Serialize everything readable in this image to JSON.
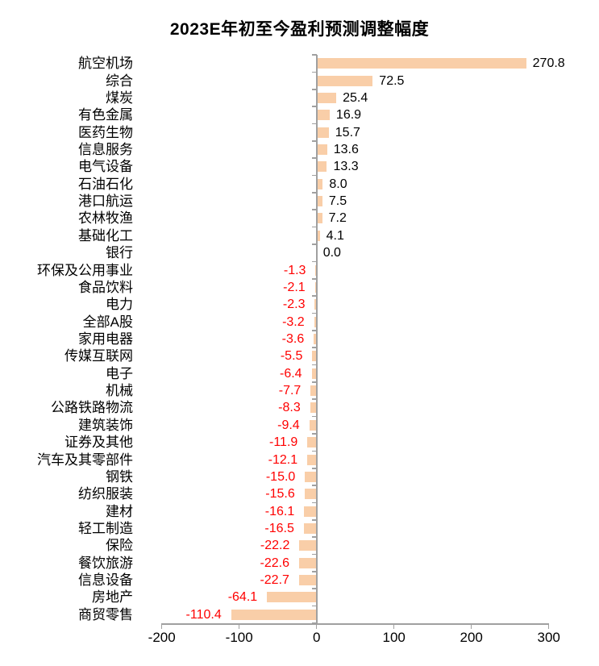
{
  "chart_data": {
    "type": "bar",
    "orientation": "horizontal",
    "title": "2023E年初至今盈利预测调整幅度",
    "categories": [
      "航空机场",
      "综合",
      "煤炭",
      "有色金属",
      "医药生物",
      "信息服务",
      "电气设备",
      "石油石化",
      "港口航运",
      "农林牧渔",
      "基础化工",
      "银行",
      "环保及公用事业",
      "食品饮料",
      "电力",
      "全部A股",
      "家用电器",
      "传媒互联网",
      "电子",
      "机械",
      "公路铁路物流",
      "建筑装饰",
      "证券及其他",
      "汽车及其零部件",
      "钢铁",
      "纺织服装",
      "建材",
      "轻工制造",
      "保险",
      "餐饮旅游",
      "信息设备",
      "房地产",
      "商贸零售"
    ],
    "values": [
      270.8,
      72.5,
      25.4,
      16.9,
      15.7,
      13.6,
      13.3,
      8.0,
      7.5,
      7.2,
      4.1,
      0.0,
      -1.3,
      -2.1,
      -2.3,
      -3.2,
      -3.6,
      -5.5,
      -6.4,
      -7.7,
      -8.3,
      -9.4,
      -11.9,
      -12.1,
      -15.0,
      -15.6,
      -16.1,
      -16.5,
      -22.2,
      -22.6,
      -22.7,
      -64.1,
      -110.4
    ],
    "xlabel": "",
    "ylabel": "",
    "xlim": [
      -200,
      300
    ],
    "xticks": [
      -200,
      -100,
      0,
      100,
      200,
      300
    ],
    "grid": false,
    "legend": false,
    "value_label_decimals": 1,
    "colors": {
      "bar_fill": "#F9CEA8",
      "positive_value_label": "#000000",
      "negative_value_label": "#FF0000",
      "axis": "#A0A0A0",
      "title": "#000000",
      "category_label": "#000000",
      "background": "#FFFFFF"
    }
  }
}
